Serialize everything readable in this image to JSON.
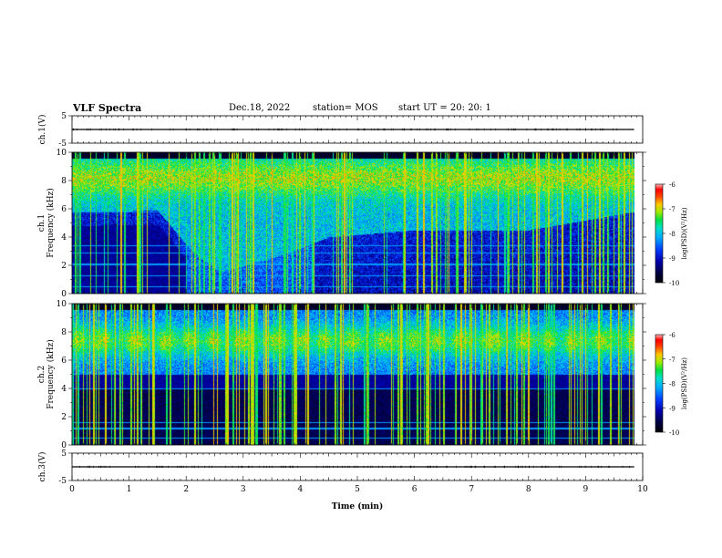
{
  "header": {
    "title": "VLF Spectra",
    "date": "Dec.18, 2022",
    "station": "station= MOS",
    "start": "start  UT  =   20: 20: 1"
  },
  "chart_data": [
    {
      "type": "line",
      "name": "ch1-waveform",
      "ylabel": "ch.1(V)",
      "ylim": [
        -5,
        5
      ],
      "yticks": [
        "5",
        "-5"
      ],
      "x": [
        0,
        9.85
      ],
      "values": [
        0,
        0
      ],
      "xlim": [
        0,
        10
      ]
    },
    {
      "type": "heatmap",
      "name": "ch1-spectrogram",
      "ylabel": "ch.1\nFrequency (kHz)",
      "ylim": [
        0,
        10
      ],
      "yticks": [
        0,
        2,
        4,
        6,
        8,
        10
      ],
      "xlim": [
        0,
        10
      ],
      "data_end_x": 9.85,
      "colorbar": {
        "label": "log(PSD)(V²/Hz)",
        "range": [
          -10,
          -6
        ],
        "ticks": [
          "-6",
          "-7",
          "-8",
          "-9",
          "-10"
        ]
      },
      "bands": {
        "upper_kHz": [
          6,
          9.5
        ],
        "emission_front_kHz_vs_min": [
          [
            0,
            5.8
          ],
          [
            1.5,
            5.9
          ],
          [
            2.1,
            3.0
          ],
          [
            2.6,
            1.5
          ],
          [
            3.5,
            2.5
          ],
          [
            4.5,
            4.0
          ],
          [
            6,
            4.5
          ],
          [
            8,
            4.5
          ],
          [
            9.85,
            5.8
          ]
        ]
      }
    },
    {
      "type": "heatmap",
      "name": "ch2-spectrogram",
      "ylabel": "ch.2\nFrequency (kHz)",
      "ylim": [
        0,
        10
      ],
      "yticks": [
        0,
        2,
        4,
        6,
        8,
        10
      ],
      "xlim": [
        0,
        10
      ],
      "data_end_x": 9.85,
      "colorbar": {
        "label": "log(PSD)(V²/Hz)",
        "range": [
          -10,
          -6
        ],
        "ticks": [
          "-6",
          "-7",
          "-8",
          "-9",
          "-10"
        ]
      },
      "bands": {
        "upper_kHz": [
          5,
          9.5
        ]
      }
    },
    {
      "type": "line",
      "name": "ch3-waveform",
      "ylabel": "ch.3(V)",
      "ylim": [
        -5,
        5
      ],
      "yticks": [
        "5",
        "-5"
      ],
      "x": [
        0,
        9.85
      ],
      "values": [
        0,
        0
      ],
      "xlim": [
        0,
        10
      ]
    }
  ],
  "xaxis": {
    "label": "Time (min)",
    "ticks": [
      "0",
      "1",
      "2",
      "3",
      "4",
      "5",
      "6",
      "7",
      "8",
      "9",
      "10"
    ]
  },
  "colors": {
    "background": "#ffffff",
    "axis": "#000000",
    "colormap": [
      "#000000",
      "#00003c",
      "#0000a0",
      "#0033ff",
      "#00aaff",
      "#00e0d0",
      "#00e050",
      "#aaee00",
      "#ffcc00",
      "#ff4400",
      "#ff0000",
      "#ffaaaa"
    ]
  }
}
